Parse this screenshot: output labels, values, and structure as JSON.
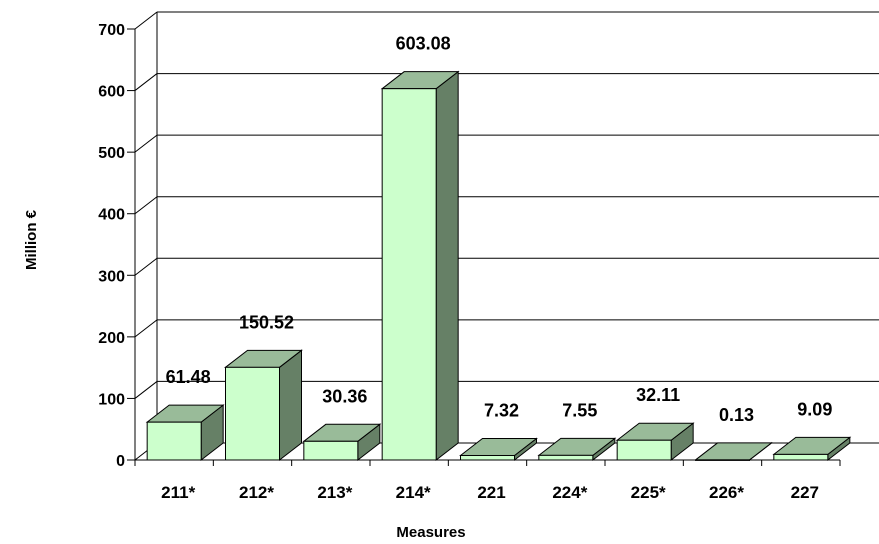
{
  "chart_data": {
    "type": "bar",
    "style": "3d",
    "title": "",
    "xlabel": "Measures",
    "ylabel": "Million €",
    "ylim": [
      0,
      700
    ],
    "yticks": [
      0,
      100,
      200,
      300,
      400,
      500,
      600,
      700
    ],
    "grid": true,
    "categories": [
      "211*",
      "212*",
      "213*",
      "214*",
      "221",
      "224*",
      "225*",
      "226*",
      "227"
    ],
    "values": [
      61.48,
      150.52,
      30.36,
      603.08,
      7.32,
      7.55,
      32.11,
      0.13,
      9.09
    ],
    "data_labels": [
      "61.48",
      "150.52",
      "30.36",
      "603.08",
      "7.32",
      "7.55",
      "32.11",
      "0.13",
      "9.09"
    ],
    "colors": {
      "bar_front": "#ccffcc",
      "bar_top": "#99bb99",
      "bar_side": "#668066",
      "grid": "#000000"
    }
  }
}
